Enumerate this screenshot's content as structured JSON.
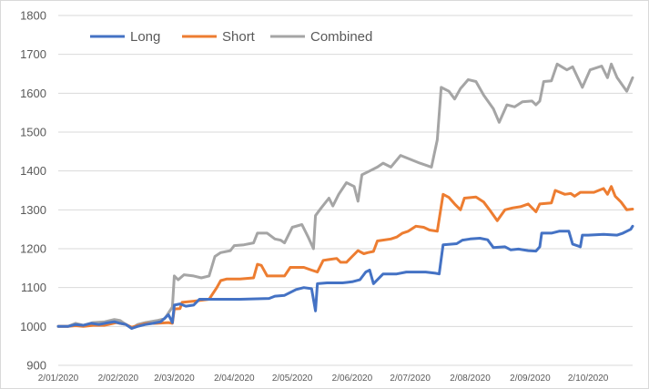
{
  "chart_data": {
    "type": "line",
    "title": "",
    "xlabel": "",
    "ylabel": "",
    "ylim": [
      900,
      1800
    ],
    "yticks": [
      900,
      1000,
      1100,
      1200,
      1300,
      1400,
      1500,
      1600,
      1700,
      1800
    ],
    "xlim": [
      "2020-01-02",
      "2020-10-25"
    ],
    "xticks": [
      {
        "date": "2020-01-02",
        "label": "2/01/2020"
      },
      {
        "date": "2020-02-02",
        "label": "2/02/2020"
      },
      {
        "date": "2020-03-02",
        "label": "2/03/2020"
      },
      {
        "date": "2020-04-02",
        "label": "2/04/2020"
      },
      {
        "date": "2020-05-02",
        "label": "2/05/2020"
      },
      {
        "date": "2020-06-02",
        "label": "2/06/2020"
      },
      {
        "date": "2020-07-02",
        "label": "2/07/2020"
      },
      {
        "date": "2020-08-02",
        "label": "2/08/2020"
      },
      {
        "date": "2020-09-02",
        "label": "2/09/2020"
      },
      {
        "date": "2020-10-02",
        "label": "2/10/2020"
      }
    ],
    "grid": true,
    "legend": "top-left",
    "series": [
      {
        "name": "Long",
        "color": "#4472c4",
        "points": [
          [
            "2020-01-02",
            1000
          ],
          [
            "2020-01-07",
            1000
          ],
          [
            "2020-01-11",
            1005
          ],
          [
            "2020-01-15",
            1003
          ],
          [
            "2020-01-19",
            1008
          ],
          [
            "2020-01-23",
            1005
          ],
          [
            "2020-01-27",
            1009
          ],
          [
            "2020-01-31",
            1012
          ],
          [
            "2020-02-03",
            1008
          ],
          [
            "2020-02-06",
            1005
          ],
          [
            "2020-02-09",
            995
          ],
          [
            "2020-02-12",
            1000
          ],
          [
            "2020-02-16",
            1005
          ],
          [
            "2020-02-20",
            1008
          ],
          [
            "2020-02-24",
            1012
          ],
          [
            "2020-02-28",
            1030
          ],
          [
            "2020-03-01",
            1010
          ],
          [
            "2020-03-02",
            1055
          ],
          [
            "2020-03-05",
            1058
          ],
          [
            "2020-03-08",
            1052
          ],
          [
            "2020-03-12",
            1055
          ],
          [
            "2020-03-15",
            1070
          ],
          [
            "2020-03-20",
            1070
          ],
          [
            "2020-04-05",
            1070
          ],
          [
            "2020-04-20",
            1072
          ],
          [
            "2020-04-23",
            1078
          ],
          [
            "2020-04-28",
            1080
          ],
          [
            "2020-05-04",
            1095
          ],
          [
            "2020-05-08",
            1100
          ],
          [
            "2020-05-12",
            1097
          ],
          [
            "2020-05-14",
            1040
          ],
          [
            "2020-05-15",
            1110
          ],
          [
            "2020-05-20",
            1112
          ],
          [
            "2020-05-28",
            1112
          ],
          [
            "2020-06-02",
            1115
          ],
          [
            "2020-06-06",
            1120
          ],
          [
            "2020-06-09",
            1140
          ],
          [
            "2020-06-11",
            1145
          ],
          [
            "2020-06-13",
            1110
          ],
          [
            "2020-06-18",
            1135
          ],
          [
            "2020-06-25",
            1135
          ],
          [
            "2020-06-30",
            1140
          ],
          [
            "2020-07-10",
            1140
          ],
          [
            "2020-07-15",
            1137
          ],
          [
            "2020-07-17",
            1135
          ],
          [
            "2020-07-19",
            1210
          ],
          [
            "2020-07-26",
            1213
          ],
          [
            "2020-07-29",
            1222
          ],
          [
            "2020-08-02",
            1225
          ],
          [
            "2020-08-07",
            1227
          ],
          [
            "2020-08-11",
            1223
          ],
          [
            "2020-08-14",
            1203
          ],
          [
            "2020-08-20",
            1205
          ],
          [
            "2020-08-23",
            1197
          ],
          [
            "2020-08-27",
            1199
          ],
          [
            "2020-09-01",
            1195
          ],
          [
            "2020-09-05",
            1194
          ],
          [
            "2020-09-07",
            1205
          ],
          [
            "2020-09-08",
            1240
          ],
          [
            "2020-09-13",
            1240
          ],
          [
            "2020-09-17",
            1245
          ],
          [
            "2020-09-22",
            1245
          ],
          [
            "2020-09-24",
            1212
          ],
          [
            "2020-09-28",
            1205
          ],
          [
            "2020-09-29",
            1235
          ],
          [
            "2020-10-02",
            1235
          ],
          [
            "2020-10-10",
            1237
          ],
          [
            "2020-10-17",
            1235
          ],
          [
            "2020-10-20",
            1240
          ],
          [
            "2020-10-22",
            1245
          ],
          [
            "2020-10-24",
            1250
          ],
          [
            "2020-10-25",
            1258
          ]
        ]
      },
      {
        "name": "Short",
        "color": "#ed7d31",
        "points": [
          [
            "2020-01-02",
            1000
          ],
          [
            "2020-01-07",
            1000
          ],
          [
            "2020-01-11",
            1002
          ],
          [
            "2020-01-15",
            1000
          ],
          [
            "2020-01-20",
            1003
          ],
          [
            "2020-01-26",
            1003
          ],
          [
            "2020-02-01",
            1010
          ],
          [
            "2020-02-06",
            1005
          ],
          [
            "2020-02-09",
            998
          ],
          [
            "2020-02-12",
            1002
          ],
          [
            "2020-02-16",
            1007
          ],
          [
            "2020-02-22",
            1008
          ],
          [
            "2020-02-28",
            1010
          ],
          [
            "2020-03-01",
            1008
          ],
          [
            "2020-03-02",
            1045
          ],
          [
            "2020-03-05",
            1046
          ],
          [
            "2020-03-06",
            1062
          ],
          [
            "2020-03-12",
            1065
          ],
          [
            "2020-03-20",
            1070
          ],
          [
            "2020-03-24",
            1100
          ],
          [
            "2020-03-26",
            1118
          ],
          [
            "2020-03-29",
            1122
          ],
          [
            "2020-04-05",
            1122
          ],
          [
            "2020-04-12",
            1125
          ],
          [
            "2020-04-14",
            1160
          ],
          [
            "2020-04-16",
            1157
          ],
          [
            "2020-04-19",
            1130
          ],
          [
            "2020-04-28",
            1130
          ],
          [
            "2020-05-01",
            1152
          ],
          [
            "2020-05-08",
            1152
          ],
          [
            "2020-05-12",
            1145
          ],
          [
            "2020-05-15",
            1140
          ],
          [
            "2020-05-18",
            1170
          ],
          [
            "2020-05-21",
            1172
          ],
          [
            "2020-05-25",
            1175
          ],
          [
            "2020-05-27",
            1165
          ],
          [
            "2020-05-30",
            1165
          ],
          [
            "2020-06-02",
            1180
          ],
          [
            "2020-06-05",
            1195
          ],
          [
            "2020-06-08",
            1187
          ],
          [
            "2020-06-10",
            1190
          ],
          [
            "2020-06-13",
            1193
          ],
          [
            "2020-06-15",
            1220
          ],
          [
            "2020-06-22",
            1225
          ],
          [
            "2020-06-25",
            1230
          ],
          [
            "2020-06-28",
            1240
          ],
          [
            "2020-07-01",
            1245
          ],
          [
            "2020-07-05",
            1258
          ],
          [
            "2020-07-09",
            1255
          ],
          [
            "2020-07-12",
            1248
          ],
          [
            "2020-07-16",
            1245
          ],
          [
            "2020-07-19",
            1340
          ],
          [
            "2020-07-22",
            1332
          ],
          [
            "2020-07-25",
            1315
          ],
          [
            "2020-07-28",
            1300
          ],
          [
            "2020-07-30",
            1330
          ],
          [
            "2020-08-05",
            1333
          ],
          [
            "2020-08-09",
            1320
          ],
          [
            "2020-08-12",
            1300
          ],
          [
            "2020-08-16",
            1272
          ],
          [
            "2020-08-20",
            1300
          ],
          [
            "2020-08-24",
            1305
          ],
          [
            "2020-08-28",
            1308
          ],
          [
            "2020-09-01",
            1315
          ],
          [
            "2020-09-05",
            1295
          ],
          [
            "2020-09-07",
            1315
          ],
          [
            "2020-09-13",
            1318
          ],
          [
            "2020-09-15",
            1350
          ],
          [
            "2020-09-20",
            1340
          ],
          [
            "2020-09-23",
            1342
          ],
          [
            "2020-09-25",
            1335
          ],
          [
            "2020-09-28",
            1345
          ],
          [
            "2020-10-05",
            1345
          ],
          [
            "2020-10-10",
            1355
          ],
          [
            "2020-10-12",
            1340
          ],
          [
            "2020-10-14",
            1360
          ],
          [
            "2020-10-16",
            1335
          ],
          [
            "2020-10-19",
            1320
          ],
          [
            "2020-10-22",
            1300
          ],
          [
            "2020-10-25",
            1302
          ]
        ]
      },
      {
        "name": "Combined",
        "color": "#a5a5a5",
        "points": [
          [
            "2020-01-02",
            1000
          ],
          [
            "2020-01-07",
            1000
          ],
          [
            "2020-01-11",
            1008
          ],
          [
            "2020-01-15",
            1003
          ],
          [
            "2020-01-20",
            1010
          ],
          [
            "2020-01-26",
            1012
          ],
          [
            "2020-01-31",
            1018
          ],
          [
            "2020-02-03",
            1015
          ],
          [
            "2020-02-06",
            1005
          ],
          [
            "2020-02-09",
            995
          ],
          [
            "2020-02-12",
            1005
          ],
          [
            "2020-02-16",
            1010
          ],
          [
            "2020-02-22",
            1015
          ],
          [
            "2020-02-26",
            1020
          ],
          [
            "2020-03-01",
            1050
          ],
          [
            "2020-03-02",
            1130
          ],
          [
            "2020-03-04",
            1120
          ],
          [
            "2020-03-07",
            1133
          ],
          [
            "2020-03-12",
            1130
          ],
          [
            "2020-03-16",
            1125
          ],
          [
            "2020-03-20",
            1130
          ],
          [
            "2020-03-23",
            1180
          ],
          [
            "2020-03-26",
            1190
          ],
          [
            "2020-03-31",
            1195
          ],
          [
            "2020-04-02",
            1208
          ],
          [
            "2020-04-07",
            1210
          ],
          [
            "2020-04-12",
            1215
          ],
          [
            "2020-04-14",
            1240
          ],
          [
            "2020-04-19",
            1240
          ],
          [
            "2020-04-23",
            1225
          ],
          [
            "2020-04-26",
            1222
          ],
          [
            "2020-04-28",
            1215
          ],
          [
            "2020-05-02",
            1255
          ],
          [
            "2020-05-07",
            1262
          ],
          [
            "2020-05-10",
            1232
          ],
          [
            "2020-05-13",
            1200
          ],
          [
            "2020-05-14",
            1285
          ],
          [
            "2020-05-17",
            1305
          ],
          [
            "2020-05-21",
            1330
          ],
          [
            "2020-05-23",
            1310
          ],
          [
            "2020-05-26",
            1340
          ],
          [
            "2020-05-30",
            1370
          ],
          [
            "2020-06-03",
            1360
          ],
          [
            "2020-06-05",
            1322
          ],
          [
            "2020-06-07",
            1390
          ],
          [
            "2020-06-11",
            1400
          ],
          [
            "2020-06-15",
            1410
          ],
          [
            "2020-06-18",
            1420
          ],
          [
            "2020-06-22",
            1410
          ],
          [
            "2020-06-27",
            1440
          ],
          [
            "2020-07-02",
            1430
          ],
          [
            "2020-07-07",
            1420
          ],
          [
            "2020-07-13",
            1410
          ],
          [
            "2020-07-16",
            1480
          ],
          [
            "2020-07-18",
            1615
          ],
          [
            "2020-07-22",
            1605
          ],
          [
            "2020-07-25",
            1585
          ],
          [
            "2020-07-28",
            1612
          ],
          [
            "2020-08-01",
            1635
          ],
          [
            "2020-08-05",
            1630
          ],
          [
            "2020-08-09",
            1595
          ],
          [
            "2020-08-14",
            1560
          ],
          [
            "2020-08-17",
            1525
          ],
          [
            "2020-08-21",
            1570
          ],
          [
            "2020-08-25",
            1565
          ],
          [
            "2020-08-29",
            1578
          ],
          [
            "2020-09-03",
            1580
          ],
          [
            "2020-09-05",
            1570
          ],
          [
            "2020-09-07",
            1580
          ],
          [
            "2020-09-09",
            1630
          ],
          [
            "2020-09-13",
            1632
          ],
          [
            "2020-09-16",
            1675
          ],
          [
            "2020-09-21",
            1660
          ],
          [
            "2020-09-24",
            1668
          ],
          [
            "2020-09-29",
            1615
          ],
          [
            "2020-10-03",
            1660
          ],
          [
            "2020-10-09",
            1670
          ],
          [
            "2020-10-12",
            1640
          ],
          [
            "2020-10-14",
            1675
          ],
          [
            "2020-10-17",
            1640
          ],
          [
            "2020-10-22",
            1605
          ],
          [
            "2020-10-25",
            1640
          ]
        ]
      }
    ]
  }
}
